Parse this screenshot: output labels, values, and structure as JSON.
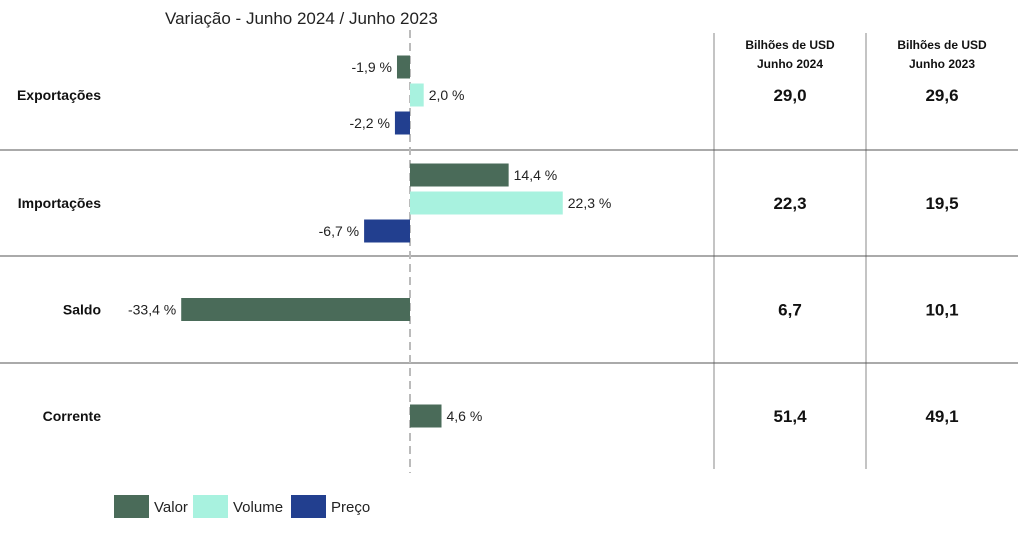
{
  "chart_data": {
    "type": "bar",
    "orientation": "horizontal",
    "title": "Variação - Junho 2024 / Junho 2023",
    "categories": [
      "Exportações",
      "Importações",
      "Saldo",
      "Corrente"
    ],
    "series": [
      {
        "name": "Valor",
        "color": "#4a6b59",
        "values": [
          -1.9,
          14.4,
          -33.4,
          4.6
        ],
        "labels": [
          "-1,9 %",
          "14,4 %",
          "-33,4 %",
          "4,6 %"
        ]
      },
      {
        "name": "Volume",
        "color": "#a8f2df",
        "values": [
          2.0,
          22.3,
          null,
          null
        ],
        "labels": [
          "2,0 %",
          "22,3 %",
          "",
          ""
        ]
      },
      {
        "name": "Preço",
        "color": "#223f8f",
        "values": [
          -2.2,
          -6.7,
          null,
          null
        ],
        "labels": [
          "-2,2 %",
          "-6,7 %",
          "",
          ""
        ]
      }
    ],
    "table": {
      "columns": [
        {
          "header_line1": "Bilhões de USD",
          "header_line2": "Junho 2024",
          "values": [
            "29,0",
            "22,3",
            "6,7",
            "51,4"
          ]
        },
        {
          "header_line1": "Bilhões de USD",
          "header_line2": "Junho 2023",
          "values": [
            "29,6",
            "19,5",
            "10,1",
            "49,1"
          ]
        }
      ]
    },
    "legend_position": "bottom-left",
    "zero_line": "dashed"
  }
}
